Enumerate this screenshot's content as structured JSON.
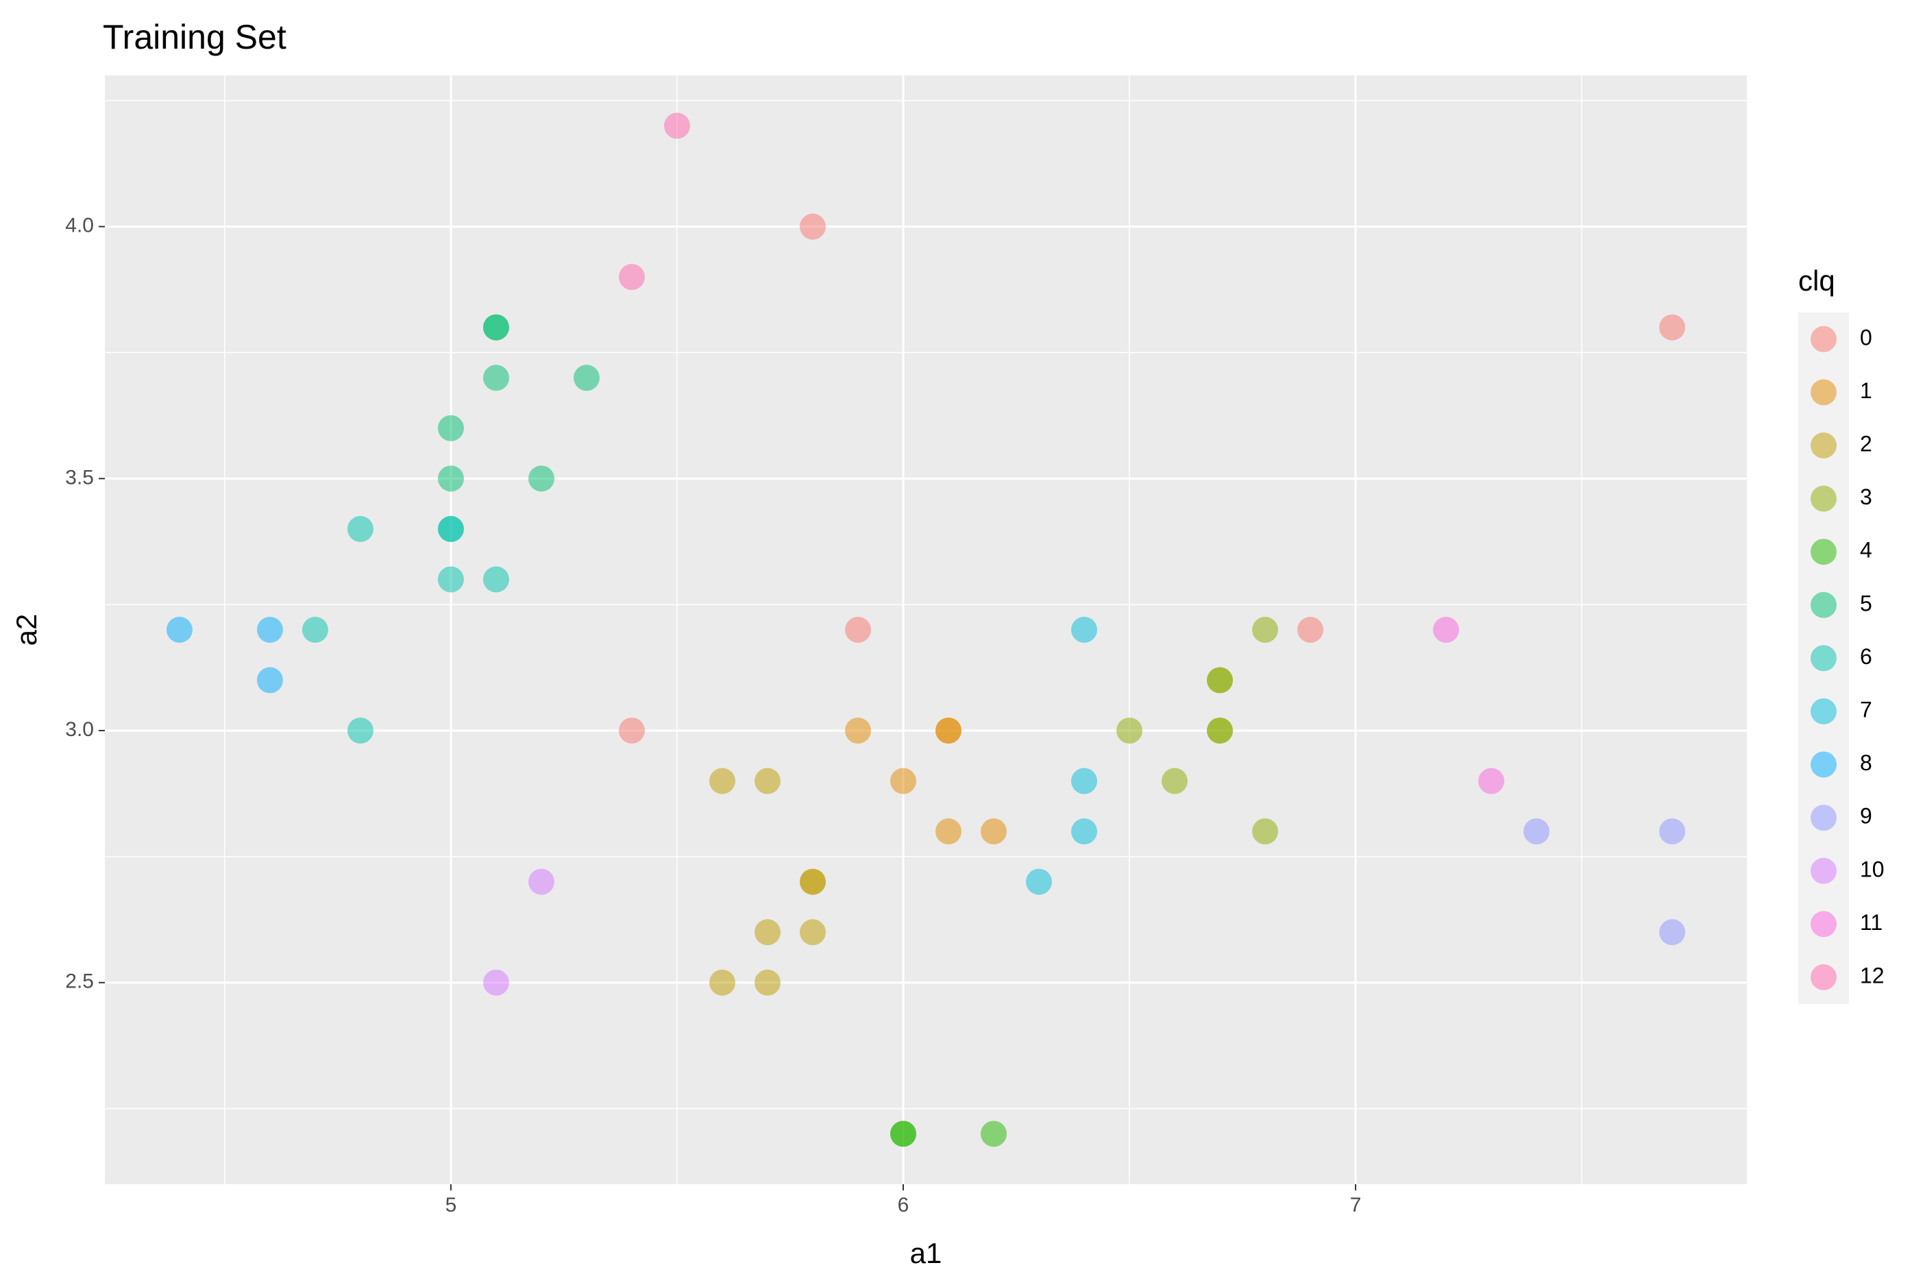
{
  "chart_data": {
    "type": "scatter",
    "title": "Training Set",
    "xlabel": "a1",
    "ylabel": "a2",
    "legend_title": "clq",
    "xlim": [
      4.235,
      7.865
    ],
    "ylim": [
      2.1,
      4.3
    ],
    "xticks": [
      5,
      6,
      7
    ],
    "yticks": [
      2.5,
      {
        "value": 3,
        "label": "3.0"
      },
      3.5,
      {
        "value": 4,
        "label": "4.0"
      }
    ],
    "xminor": [
      4.5,
      5.5,
      6.5,
      7.5
    ],
    "yminor": [
      2.25,
      2.75,
      3.25,
      3.75,
      4.25
    ],
    "grid": true,
    "legend": "right",
    "alpha": 0.5,
    "series": [
      {
        "name": "0",
        "color": "#F8766D",
        "x": [
          5.8,
          7.7,
          5.9,
          6.9,
          5.4
        ],
        "values": [
          4.0,
          3.8,
          3.2,
          3.2,
          3.0
        ]
      },
      {
        "name": "1",
        "color": "#E18A00",
        "x": [
          5.9,
          6.1,
          6.1,
          6.0,
          6.1,
          6.2
        ],
        "values": [
          3.0,
          3.0,
          3.0,
          2.9,
          2.8,
          2.8
        ]
      },
      {
        "name": "2",
        "color": "#BE9C00",
        "x": [
          5.6,
          5.7,
          5.8,
          5.8,
          5.7,
          5.8,
          5.6,
          5.7
        ],
        "values": [
          2.9,
          2.9,
          2.7,
          2.7,
          2.6,
          2.6,
          2.5,
          2.5
        ]
      },
      {
        "name": "3",
        "color": "#8CAB00",
        "x": [
          6.8,
          6.7,
          6.7,
          6.5,
          6.7,
          6.7,
          6.6,
          6.8
        ],
        "values": [
          3.2,
          3.1,
          3.1,
          3.0,
          3.0,
          3.0,
          2.9,
          2.8
        ]
      },
      {
        "name": "4",
        "color": "#24B700",
        "x": [
          6.0,
          6.0,
          6.2
        ],
        "values": [
          2.2,
          2.2,
          2.2
        ]
      },
      {
        "name": "5",
        "color": "#00BE70",
        "x": [
          5.1,
          5.1,
          5.1,
          5.3,
          5.0,
          5.0,
          5.2
        ],
        "values": [
          3.8,
          3.8,
          3.7,
          3.7,
          3.6,
          3.5,
          3.5
        ]
      },
      {
        "name": "6",
        "color": "#00C1AB",
        "x": [
          4.8,
          5.0,
          5.0,
          5.0,
          5.1,
          4.7,
          4.8
        ],
        "values": [
          3.4,
          3.4,
          3.4,
          3.3,
          3.3,
          3.2,
          3.0
        ]
      },
      {
        "name": "7",
        "color": "#00BBDA",
        "x": [
          6.4,
          6.4,
          6.4,
          6.3
        ],
        "values": [
          3.2,
          2.9,
          2.8,
          2.7
        ]
      },
      {
        "name": "8",
        "color": "#00ACFC",
        "x": [
          4.4,
          4.6,
          4.6
        ],
        "values": [
          3.2,
          3.2,
          3.1
        ]
      },
      {
        "name": "9",
        "color": "#8B93FF",
        "x": [
          7.4,
          7.7,
          7.7
        ],
        "values": [
          2.8,
          2.8,
          2.6
        ]
      },
      {
        "name": "10",
        "color": "#D575FE",
        "x": [
          5.2,
          5.1
        ],
        "values": [
          2.7,
          2.5
        ]
      },
      {
        "name": "11",
        "color": "#F962DD",
        "x": [
          7.2,
          7.3
        ],
        "values": [
          3.2,
          2.9
        ]
      },
      {
        "name": "12",
        "color": "#FF65AC",
        "x": [
          5.5,
          5.4
        ],
        "values": [
          4.2,
          3.9
        ]
      }
    ]
  }
}
